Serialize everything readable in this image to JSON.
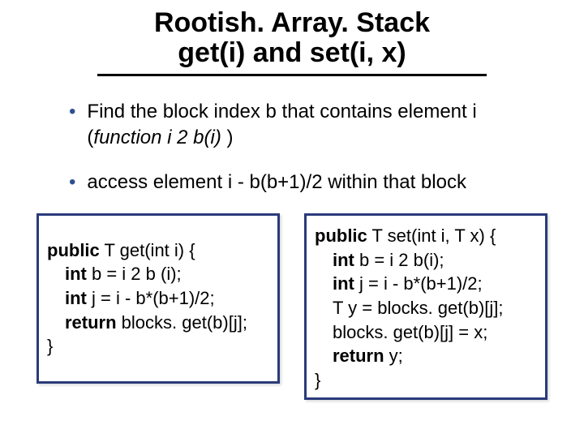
{
  "title": {
    "line1": "Rootish. Array. Stack",
    "line2": "get(i) and set(i, x)"
  },
  "bullets": [
    {
      "pre": "Find the block index b that contains element i (",
      "italic": "function i 2 b(i)",
      "post": " )"
    },
    {
      "pre": "access element i - b(b+1)/2 within that block",
      "italic": "",
      "post": ""
    }
  ],
  "code": {
    "get": {
      "l1_pre": "public",
      "l1_rest": " T get(int i) {",
      "l2_pre": "int",
      "l2_rest": " b = i 2 b (i);",
      "l3_pre": "int",
      "l3_rest": " j = i - b*(b+1)/2;",
      "l4_pre": "return",
      "l4_rest": " blocks. get(b)[j];",
      "l5": "}"
    },
    "set": {
      "l1_pre": "public",
      "l1_rest": " T set(int i, T x) {",
      "l2_pre": "int",
      "l2_rest": " b = i 2 b(i);",
      "l3_pre": "int",
      "l3_rest": " j = i - b*(b+1)/2;",
      "l4": "T y = blocks. get(b)[j];",
      "l5": "blocks. get(b)[j] = x;",
      "l6_pre": "return",
      "l6_rest": " y;",
      "l7": "}"
    }
  },
  "colors": {
    "bullet_dot": "#305090",
    "code_border": "#2a3b7a",
    "background": "#ffffff",
    "text": "#000000"
  }
}
